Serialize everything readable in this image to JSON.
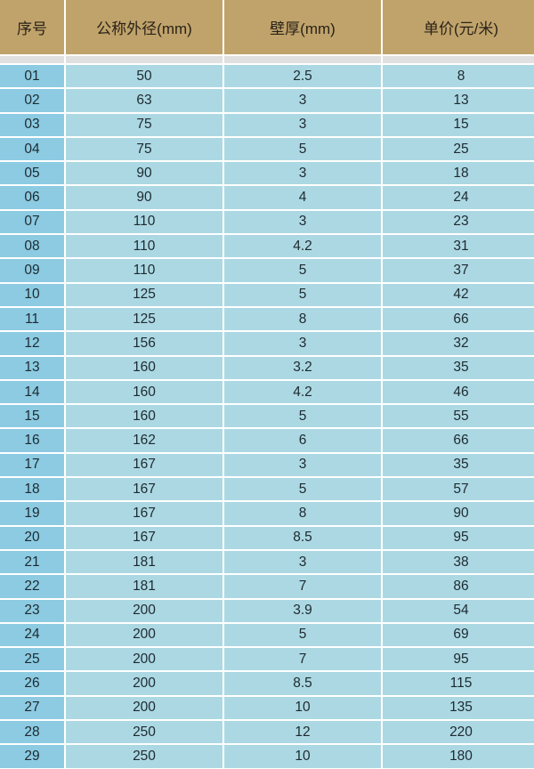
{
  "table": {
    "headers": [
      "序号",
      "公称外径(mm)",
      "壁厚(mm)",
      "单价(元/米)"
    ],
    "rows": [
      [
        "01",
        "50",
        "2.5",
        "8"
      ],
      [
        "02",
        "63",
        "3",
        "13"
      ],
      [
        "03",
        "75",
        "3",
        "15"
      ],
      [
        "04",
        "75",
        "5",
        "25"
      ],
      [
        "05",
        "90",
        "3",
        "18"
      ],
      [
        "06",
        "90",
        "4",
        "24"
      ],
      [
        "07",
        "110",
        "3",
        "23"
      ],
      [
        "08",
        "110",
        "4.2",
        "31"
      ],
      [
        "09",
        "110",
        "5",
        "37"
      ],
      [
        "10",
        "125",
        "5",
        "42"
      ],
      [
        "11",
        "125",
        "8",
        "66"
      ],
      [
        "12",
        "156",
        "3",
        "32"
      ],
      [
        "13",
        "160",
        "3.2",
        "35"
      ],
      [
        "14",
        "160",
        "4.2",
        "46"
      ],
      [
        "15",
        "160",
        "5",
        "55"
      ],
      [
        "16",
        "162",
        "6",
        "66"
      ],
      [
        "17",
        "167",
        "3",
        "35"
      ],
      [
        "18",
        "167",
        "5",
        "57"
      ],
      [
        "19",
        "167",
        "8",
        "90"
      ],
      [
        "20",
        "167",
        "8.5",
        "95"
      ],
      [
        "21",
        "181",
        "3",
        "38"
      ],
      [
        "22",
        "181",
        "7",
        "86"
      ],
      [
        "23",
        "200",
        "3.9",
        "54"
      ],
      [
        "24",
        "200",
        "5",
        "69"
      ],
      [
        "25",
        "200",
        "7",
        "95"
      ],
      [
        "26",
        "200",
        "8.5",
        "115"
      ],
      [
        "27",
        "200",
        "10",
        "135"
      ],
      [
        "28",
        "250",
        "12",
        "220"
      ],
      [
        "29",
        "250",
        "10",
        "180"
      ]
    ]
  },
  "colors": {
    "header": "#c0a36b",
    "index_column": "#8ccbe2",
    "cell": "#acd8e3",
    "separator_strip": "#e0e0e0"
  }
}
